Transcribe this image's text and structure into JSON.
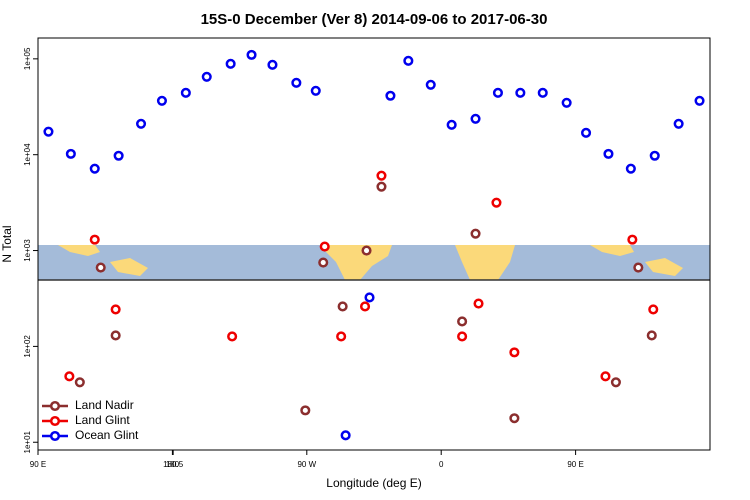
{
  "chart_data": {
    "type": "scatter",
    "title": "15S-0 December (Ver 8)   2014-09-06 to 2017-06-30",
    "x_label": "Longitude (deg E)",
    "y_label": "N Total",
    "xlim": [
      90,
      540
    ],
    "ylim": [
      8.3,
      165000
    ],
    "log_y": true,
    "legend": "bottom-left",
    "xticks": [
      {
        "value": 90,
        "label": "90 E"
      },
      180,
      {
        "value": 270,
        "label": "90 W"
      },
      {
        "value": 360,
        "label": "0"
      },
      {
        "value": 450,
        "label": "90 E"
      },
      180.5
    ],
    "yticks": [
      {
        "value": 10,
        "label": "1e+01"
      },
      {
        "value": 100,
        "label": "1e+02"
      },
      {
        "value": 1000,
        "label": "1e+03"
      },
      {
        "value": 10000,
        "label": "1e+04"
      },
      {
        "value": 100000,
        "label": "1e+05"
      }
    ],
    "series": [
      {
        "name": "Land Nadir",
        "color": "#8b2e2e",
        "x": [
          118,
          132,
          142,
          269,
          281,
          294,
          310,
          320,
          374,
          383,
          409,
          477,
          492,
          501
        ],
        "values": [
          42.2,
          665,
          130,
          21.5,
          750,
          261,
          1000,
          4640,
          182,
          1500,
          17.8,
          42.2,
          665,
          130
        ]
      },
      {
        "name": "Land Glint",
        "color": "#ee0000",
        "x": [
          111,
          128,
          142,
          220,
          282,
          293,
          309,
          320,
          385,
          397,
          374,
          409,
          470,
          488,
          502
        ],
        "values": [
          48.7,
          1300,
          243,
          127,
          1100,
          127,
          261,
          6040,
          280,
          3160,
          127,
          86.6,
          48.7,
          1300,
          243
        ]
      },
      {
        "name": "Ocean Glint",
        "color": "#0000ee",
        "x": [
          97,
          112,
          128,
          144,
          159,
          173,
          189,
          203,
          219,
          233,
          247,
          263,
          276,
          312,
          296,
          326,
          338,
          353,
          367,
          383,
          398,
          413,
          428,
          444,
          457,
          472,
          487,
          503,
          519,
          533
        ],
        "values": [
          17400,
          10200,
          7150,
          9750,
          21000,
          36500,
          44200,
          65000,
          88700,
          110000,
          86600,
          56200,
          46400,
          324,
          11.8,
          41200,
          95300,
          53600,
          20500,
          23700,
          44200,
          44200,
          44200,
          34800,
          16900,
          10200,
          7150,
          9750,
          21000,
          36500
        ]
      }
    ]
  }
}
